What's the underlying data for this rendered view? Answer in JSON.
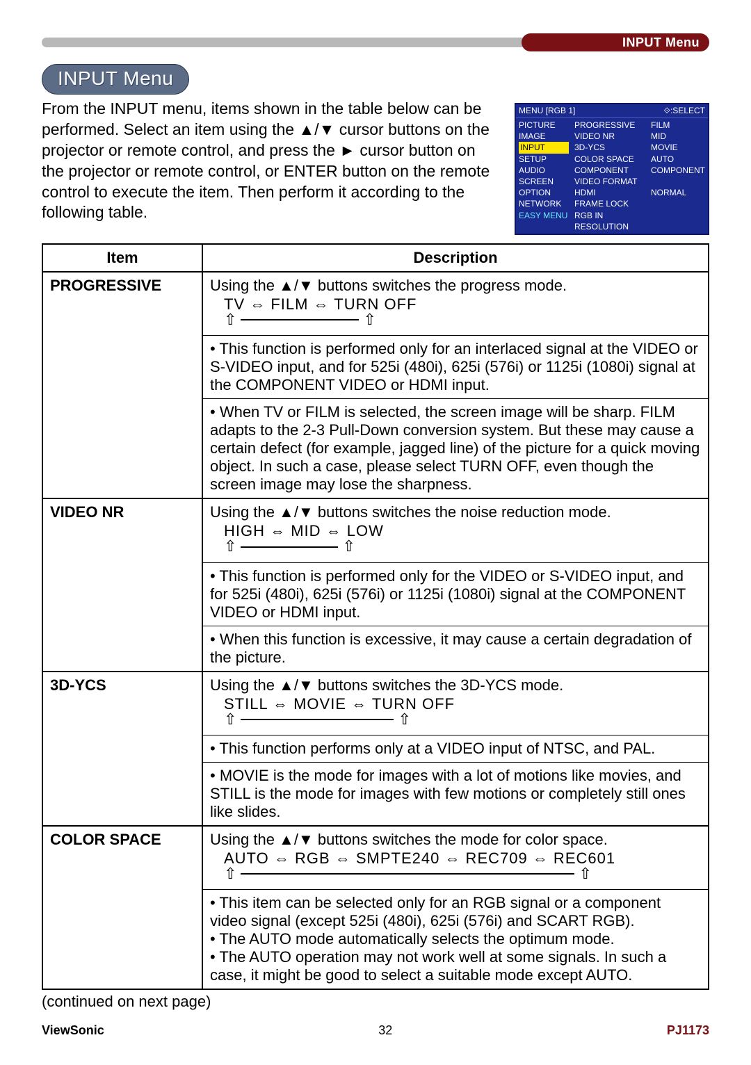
{
  "header": {
    "section_label": "INPUT Menu"
  },
  "title_pill": "INPUT Menu",
  "intro": "From the INPUT menu, items shown in the table below can be performed.\nSelect an item using the ▲/▼ cursor buttons on the projector or remote control, and press the ► cursor button on the projector or remote control, or ENTER button on the remote control to execute the item. Then perform it according to the following table.",
  "osd": {
    "title_left": "MENU [RGB 1]",
    "title_right": "⟐:SELECT",
    "col1": [
      "PICTURE",
      "IMAGE",
      "INPUT",
      "SETUP",
      "AUDIO",
      "SCREEN",
      "OPTION",
      "NETWORK",
      "EASY MENU"
    ],
    "col1_highlight_index": 2,
    "col1_cyan_index": 8,
    "col2": [
      "PROGRESSIVE",
      "VIDEO NR",
      "3D-YCS",
      "COLOR SPACE",
      "COMPONENT",
      "VIDEO FORMAT",
      "HDMI",
      "FRAME LOCK",
      "RGB IN",
      "RESOLUTION"
    ],
    "col3": [
      "FILM",
      "MID",
      "MOVIE",
      "AUTO",
      "COMPONENT",
      "",
      "NORMAL",
      "",
      "",
      ""
    ]
  },
  "table": {
    "headers": {
      "item": "Item",
      "desc": "Description"
    },
    "rows": [
      {
        "item": "PROGRESSIVE",
        "blocks": [
          {
            "lead": "Using the ▲/▼ buttons switches the progress mode.",
            "cycle": "TV ⇔ FILM ⇔ TURN OFF",
            "cycle_width": 210
          },
          {
            "text": "• This function is performed only for an interlaced signal at the VIDEO or S-VIDEO input, and for 525i (480i), 625i (576i) or 1125i (1080i) signal at the COMPONENT VIDEO or HDMI input."
          },
          {
            "text": "• When TV or FILM is selected, the screen image will be sharp. FILM adapts to the 2-3 Pull-Down conversion system. But these may cause a certain defect (for example, jagged line) of the picture for a quick moving object. In such a case, please select TURN OFF, even though the screen image may lose the sharpness."
          }
        ]
      },
      {
        "item": "VIDEO NR",
        "blocks": [
          {
            "lead": "Using the ▲/▼ buttons switches the noise reduction mode.",
            "cycle": "HIGH ⇔ MID ⇔ LOW",
            "cycle_width": 180
          },
          {
            "text": "• This function is performed only for the VIDEO or S-VIDEO input, and for 525i (480i), 625i (576i) or 1125i (1080i) signal at the COMPONENT VIDEO or HDMI input."
          },
          {
            "text": "• When this function is excessive, it may cause a certain degradation of the picture."
          }
        ]
      },
      {
        "item": "3D-YCS",
        "blocks": [
          {
            "lead": "Using the ▲/▼ buttons switches the 3D-YCS mode.",
            "cycle": "STILL ⇔ MOVIE ⇔ TURN OFF",
            "cycle_width": 260
          },
          {
            "text": "• This function performs only at a VIDEO input of NTSC, and PAL."
          },
          {
            "text": "• MOVIE is the mode for images with a lot of motions like movies, and STILL is the mode for images with few motions or completely still ones like slides."
          }
        ]
      },
      {
        "item": "COLOR SPACE",
        "blocks": [
          {
            "lead": "Using the ▲/▼ buttons switches the mode for color space.",
            "cycle": "AUTO ⇔ RGB ⇔ SMPTE240 ⇔ REC709 ⇔ REC601",
            "cycle_width": 520
          },
          {
            "text": "• This item can be selected only for an RGB signal or a component video signal (except 525i (480i), 625i (576i) and SCART RGB).\n• The AUTO mode automatically selects the optimum mode.\n• The AUTO operation may not work well at some signals. In such a case, it might be good to select a suitable mode except AUTO."
          }
        ]
      }
    ]
  },
  "continued": "(continued on next page)",
  "footer": {
    "brand": "ViewSonic",
    "page": "32",
    "model": "PJ1173"
  },
  "colors": {
    "topbar_grey": "#b8b8b8",
    "topbar_red": "#7a1215",
    "pill_bg": "#5c6b86",
    "osd_bg": "#1a2a8f",
    "osd_highlight": "#ffe600",
    "osd_cyan": "#6fe6ff"
  }
}
